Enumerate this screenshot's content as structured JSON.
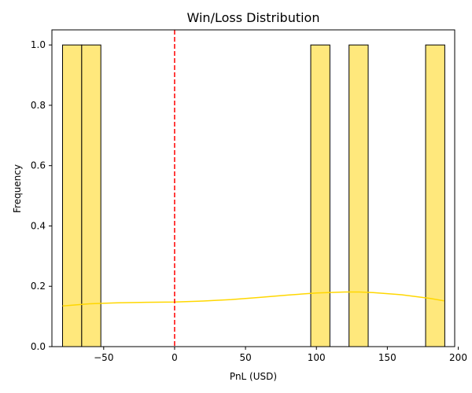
{
  "chart_data": {
    "type": "histogram",
    "title": "Win/Loss Distribution",
    "xlabel": "PnL (USD)",
    "ylabel": "Frequency",
    "xlim": [
      -86.5,
      197.5
    ],
    "ylim": [
      0,
      1.05
    ],
    "xticks": [
      -50,
      0,
      50,
      100,
      150,
      200
    ],
    "xtick_labels": [
      "−50",
      "0",
      "50",
      "100",
      "150",
      "200"
    ],
    "yticks": [
      0.0,
      0.2,
      0.4,
      0.6,
      0.8,
      1.0
    ],
    "ytick_labels": [
      "0.0",
      "0.2",
      "0.4",
      "0.6",
      "0.8",
      "1.0"
    ],
    "grid": false,
    "bars": [
      {
        "x0": -79.0,
        "x1": -65.5,
        "count": 1
      },
      {
        "x0": -65.5,
        "x1": -52.0,
        "count": 1
      },
      {
        "x0": 96.0,
        "x1": 109.5,
        "count": 1
      },
      {
        "x0": 123.0,
        "x1": 136.5,
        "count": 1
      },
      {
        "x0": 177.0,
        "x1": 190.5,
        "count": 1
      }
    ],
    "kde": {
      "x": [
        -79,
        -60,
        -40,
        -20,
        0,
        20,
        40,
        60,
        80,
        100,
        120,
        130,
        140,
        160,
        180,
        190
      ],
      "y": [
        0.135,
        0.142,
        0.145,
        0.147,
        0.148,
        0.151,
        0.156,
        0.163,
        0.171,
        0.178,
        0.181,
        0.181,
        0.179,
        0.172,
        0.16,
        0.152
      ]
    },
    "reference_line": {
      "x": 0
    },
    "colors": {
      "bar_fill": "#ffe87c",
      "bar_edge": "#000000",
      "kde_line": "#ffd700",
      "reference_line": "#ff0000",
      "axes": "#000000"
    }
  }
}
